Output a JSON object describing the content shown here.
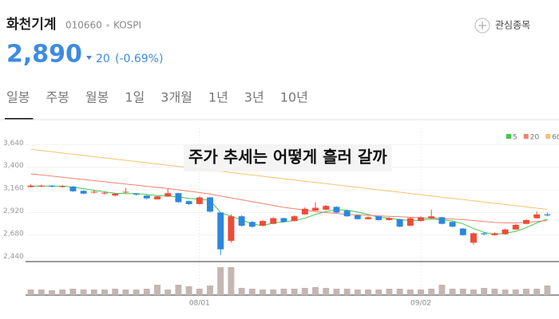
{
  "header": {
    "name": "화천기계",
    "code": "010660",
    "market": "KOSPI",
    "watch": "관심종목",
    "price": "2,890",
    "change": "20",
    "change_pct": "(-0.69%)"
  },
  "tabs": [
    "일봉",
    "주봉",
    "월봉",
    "1일",
    "3개월",
    "1년",
    "3년",
    "10년"
  ],
  "selected_tab": 0,
  "chart_data": {
    "type": "candlestick",
    "annotation": "주가 추세는 어떻게 흘러 갈까",
    "up_color": "#ee4b37",
    "down_color": "#2c87dd",
    "categories": [
      null,
      null,
      null,
      null,
      null,
      null,
      null,
      null,
      null,
      null,
      null,
      null,
      null,
      null,
      null,
      null,
      "08/01",
      null,
      null,
      null,
      null,
      null,
      null,
      null,
      null,
      null,
      null,
      null,
      null,
      null,
      null,
      null,
      null,
      null,
      null,
      null,
      null,
      "09/02",
      null,
      null,
      null,
      null,
      null,
      null,
      null,
      null,
      null,
      null,
      null,
      null
    ],
    "open": [
      3190,
      3195,
      3205,
      3190,
      3195,
      3150,
      3135,
      3125,
      3100,
      3135,
      3120,
      3100,
      3060,
      3090,
      3125,
      3040,
      3010,
      3080,
      2920,
      2620,
      2880,
      2820,
      2780,
      2800,
      2860,
      2830,
      2900,
      2940,
      2950,
      2980,
      2940,
      2890,
      2850,
      2880,
      2840,
      2850,
      2780,
      2830,
      2860,
      2870,
      2820,
      2750,
      2600,
      2700,
      2680,
      2690,
      2740,
      2800,
      2860,
      2900
    ],
    "close": [
      3205,
      3205,
      3195,
      3200,
      3145,
      3120,
      3140,
      3130,
      3120,
      3140,
      3110,
      3070,
      3090,
      3125,
      3030,
      3010,
      3080,
      2930,
      2530,
      2880,
      2780,
      2770,
      2830,
      2860,
      2820,
      2880,
      2960,
      2970,
      2990,
      2920,
      2880,
      2850,
      2870,
      2840,
      2860,
      2770,
      2860,
      2870,
      2880,
      2800,
      2770,
      2680,
      2700,
      2690,
      2700,
      2740,
      2790,
      2840,
      2900,
      2890
    ],
    "high": [
      3220,
      3215,
      3210,
      3210,
      3200,
      3155,
      3160,
      3140,
      3125,
      3180,
      3125,
      3105,
      3095,
      3170,
      3130,
      3045,
      3090,
      3085,
      2925,
      2900,
      2890,
      2830,
      2840,
      2870,
      2865,
      2890,
      2975,
      3030,
      3000,
      2985,
      2945,
      2895,
      2880,
      2885,
      2870,
      2855,
      2870,
      2880,
      2950,
      2875,
      2825,
      2755,
      2710,
      2710,
      2710,
      2750,
      2800,
      2850,
      2930,
      2920
    ],
    "low": [
      3185,
      3190,
      3185,
      3185,
      3140,
      3115,
      3120,
      3110,
      3090,
      3125,
      3100,
      3060,
      3055,
      3085,
      3025,
      3000,
      3005,
      2920,
      2470,
      2600,
      2770,
      2760,
      2775,
      2795,
      2815,
      2825,
      2895,
      2935,
      2945,
      2915,
      2875,
      2845,
      2845,
      2835,
      2835,
      2765,
      2775,
      2825,
      2855,
      2795,
      2765,
      2675,
      2580,
      2680,
      2675,
      2685,
      2735,
      2795,
      2855,
      2880
    ],
    "series": [
      {
        "name": "5",
        "color": "#3ec94a",
        "values": [
          3200,
          3200,
          3200,
          3200,
          3190,
          3172,
          3155,
          3140,
          3125,
          3120,
          3122,
          3112,
          3098,
          3095,
          3085,
          3070,
          3060,
          3050,
          2920,
          2880,
          2840,
          2800,
          2780,
          2810,
          2820,
          2835,
          2860,
          2900,
          2930,
          2950,
          2945,
          2925,
          2900,
          2870,
          2860,
          2845,
          2835,
          2840,
          2850,
          2845,
          2830,
          2800,
          2750,
          2710,
          2690,
          2700,
          2720,
          2760,
          2810,
          2850
        ]
      },
      {
        "name": "20",
        "color": "#f2806f",
        "values": [
          3330,
          3318,
          3306,
          3294,
          3282,
          3270,
          3258,
          3246,
          3234,
          3222,
          3210,
          3198,
          3186,
          3174,
          3160,
          3146,
          3132,
          3115,
          3095,
          3075,
          3055,
          3035,
          3015,
          2995,
          2975,
          2960,
          2945,
          2930,
          2920,
          2910,
          2900,
          2895,
          2890,
          2885,
          2880,
          2875,
          2870,
          2865,
          2860,
          2855,
          2850,
          2845,
          2835,
          2825,
          2815,
          2810,
          2810,
          2815,
          2825,
          2835
        ]
      },
      {
        "name": "60",
        "color": "#f6c36e",
        "values": [
          3590,
          3577,
          3564,
          3551,
          3538,
          3525,
          3512,
          3499,
          3486,
          3473,
          3460,
          3447,
          3434,
          3421,
          3408,
          3395,
          3382,
          3369,
          3356,
          3343,
          3330,
          3317,
          3304,
          3291,
          3278,
          3265,
          3252,
          3239,
          3226,
          3213,
          3200,
          3187,
          3174,
          3161,
          3148,
          3135,
          3122,
          3109,
          3096,
          3083,
          3070,
          3057,
          3044,
          3031,
          3018,
          3005,
          2992,
          2979,
          2966,
          2953
        ]
      }
    ],
    "ylim": [
      2400,
      3820
    ],
    "yticks": [
      {
        "value": 3640,
        "label": "3,640"
      },
      {
        "value": 3400,
        "label": "3,400"
      },
      {
        "value": 3160,
        "label": "3,160"
      },
      {
        "value": 2920,
        "label": "2,920"
      },
      {
        "value": 2680,
        "label": "2,680"
      },
      {
        "value": 2440,
        "label": "2,440"
      }
    ],
    "volume": {
      "color": "#c4b6b2",
      "ylim": [
        0,
        40
      ],
      "values": [
        7,
        7,
        6,
        7,
        8,
        7,
        7,
        7,
        8,
        7,
        7,
        8,
        13,
        7,
        13,
        11,
        8,
        12,
        35,
        35,
        9,
        8,
        7,
        7,
        8,
        8,
        9,
        10,
        9,
        8,
        8,
        7,
        7,
        7,
        8,
        8,
        7,
        7,
        8,
        13,
        8,
        8,
        7,
        9,
        8,
        7,
        7,
        8,
        8,
        12
      ]
    }
  }
}
